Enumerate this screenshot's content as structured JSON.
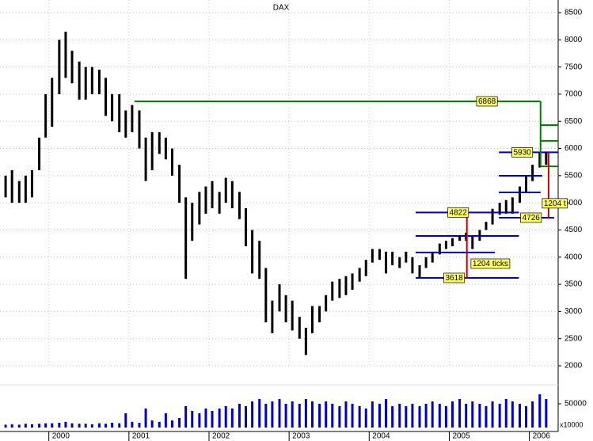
{
  "chart_data": {
    "type": "hilo",
    "title": "DAX",
    "x": [
      1999.46,
      1999.54,
      1999.63,
      1999.71,
      1999.79,
      1999.88,
      1999.96,
      2000.04,
      2000.13,
      2000.21,
      2000.29,
      2000.38,
      2000.46,
      2000.54,
      2000.63,
      2000.71,
      2000.79,
      2000.88,
      2000.96,
      2001.04,
      2001.13,
      2001.21,
      2001.29,
      2001.38,
      2001.46,
      2001.54,
      2001.63,
      2001.71,
      2001.79,
      2001.88,
      2001.96,
      2002.04,
      2002.13,
      2002.21,
      2002.29,
      2002.38,
      2002.46,
      2002.54,
      2002.63,
      2002.71,
      2002.79,
      2002.88,
      2002.96,
      2003.04,
      2003.13,
      2003.21,
      2003.29,
      2003.38,
      2003.46,
      2003.54,
      2003.63,
      2003.71,
      2003.79,
      2003.88,
      2003.96,
      2004.04,
      2004.13,
      2004.21,
      2004.29,
      2004.38,
      2004.46,
      2004.54,
      2004.63,
      2004.71,
      2004.79,
      2004.88,
      2004.96,
      2005.04,
      2005.13,
      2005.21,
      2005.29,
      2005.38,
      2005.46,
      2005.54,
      2005.63,
      2005.71,
      2005.79,
      2005.88,
      2005.96,
      2006.04,
      2006.13,
      2006.21
    ],
    "high": [
      5500,
      5600,
      5400,
      5500,
      5600,
      6200,
      7000,
      7300,
      8000,
      8150,
      7800,
      7600,
      7500,
      7500,
      7450,
      7300,
      7000,
      7000,
      6700,
      6800,
      6700,
      6200,
      6300,
      6300,
      6200,
      6000,
      5700,
      5100,
      5000,
      5200,
      5300,
      5400,
      5200,
      5460,
      5400,
      5200,
      4900,
      4500,
      4300,
      3800,
      3200,
      3500,
      3300,
      3200,
      2900,
      2700,
      3100,
      3100,
      3300,
      3550,
      3600,
      3650,
      3700,
      3800,
      3950,
      4150,
      4150,
      4100,
      4100,
      4000,
      4100,
      4000,
      3850,
      4000,
      4100,
      4250,
      4300,
      4350,
      4400,
      4450,
      4400,
      4500,
      4650,
      4890,
      5000,
      5050,
      5100,
      5300,
      5500,
      5700,
      5930,
      5930
    ],
    "low": [
      5100,
      5000,
      5000,
      5000,
      5100,
      5600,
      6200,
      6400,
      7000,
      7300,
      7200,
      6900,
      6900,
      7000,
      7000,
      6600,
      6500,
      6300,
      6200,
      6300,
      6000,
      5400,
      5600,
      5900,
      5800,
      5500,
      5000,
      3600,
      4300,
      4600,
      4800,
      4900,
      4800,
      5000,
      4900,
      4700,
      4200,
      3700,
      3600,
      2800,
      2600,
      3000,
      2800,
      2650,
      2500,
      2200,
      2600,
      2800,
      3000,
      3200,
      3250,
      3300,
      3400,
      3550,
      3650,
      3900,
      3950,
      3700,
      3850,
      3800,
      3900,
      3700,
      3620,
      3800,
      3900,
      4050,
      4150,
      4200,
      4300,
      4300,
      4150,
      4300,
      4500,
      4600,
      4780,
      4800,
      4800,
      5000,
      5200,
      5400,
      5650,
      5700
    ],
    "volume": [
      6000,
      7000,
      6000,
      8000,
      7000,
      8000,
      9000,
      9000,
      10000,
      12000,
      9000,
      8000,
      8000,
      7000,
      9000,
      8000,
      10000,
      9000,
      30000,
      12000,
      10000,
      40000,
      15000,
      12000,
      30000,
      15000,
      20000,
      45000,
      35000,
      30000,
      40000,
      35000,
      40000,
      45000,
      40000,
      50000,
      45000,
      55000,
      60000,
      50000,
      55000,
      60000,
      50000,
      55000,
      50000,
      60000,
      55000,
      50000,
      55000,
      50000,
      45000,
      55000,
      50000,
      45000,
      40000,
      55000,
      50000,
      60000,
      45000,
      50000,
      45000,
      50000,
      45000,
      50000,
      55000,
      50000,
      45000,
      55000,
      60000,
      50000,
      55000,
      50000,
      45000,
      55000,
      50000,
      60000,
      55000,
      50000,
      45000,
      55000,
      70000,
      60000
    ],
    "bar_color": "#000000",
    "volume_color": "#0000cc",
    "xlim": [
      1999.39,
      2006.36
    ],
    "xticks": [
      2000,
      2001,
      2002,
      2003,
      2004,
      2005,
      2006
    ],
    "ylim": [
      2000,
      8500
    ],
    "yticks": [
      2000,
      2500,
      3000,
      3500,
      4000,
      4500,
      5000,
      5500,
      6000,
      6500,
      7000,
      7500,
      8000,
      8500
    ],
    "volume_ylim": [
      0,
      80000
    ],
    "volume_yticks": [
      50000
    ],
    "volume_unit": "x10000",
    "grid": true,
    "levels": [
      {
        "value": 6868,
        "color": "#008000",
        "from": 2001.07,
        "to": 2006.14,
        "label_x": 2005.46
      },
      {
        "value": 6430,
        "color": "#008000",
        "from": 2006.14,
        "to": 2006.36
      },
      {
        "value": 6140,
        "color": "#008000",
        "from": 2006.14,
        "to": 2006.36
      },
      {
        "value": 5670,
        "color": "#008000",
        "from": 2006.14,
        "to": 2006.36
      },
      {
        "value": 5930,
        "color": "#0000cc",
        "from": 2005.62,
        "to": 2006.36,
        "label_x": 2005.9
      },
      {
        "value": 5498,
        "color": "#0000cc",
        "from": 2005.62,
        "to": 2006.16
      },
      {
        "value": 5192,
        "color": "#0000cc",
        "from": 2005.62,
        "to": 2006.14
      },
      {
        "value": 4726,
        "color": "#0000cc",
        "from": 2005.62,
        "to": 2006.31,
        "label_x": 2006.01
      },
      {
        "value": 4822,
        "color": "#0000cc",
        "from": 2004.58,
        "to": 2005.87,
        "label_x": 2005.1
      },
      {
        "value": 4390,
        "color": "#0000cc",
        "from": 2004.58,
        "to": 2005.87
      },
      {
        "value": 4085,
        "color": "#0000cc",
        "from": 2004.58,
        "to": 2005.57
      },
      {
        "value": 3618,
        "color": "#0000cc",
        "from": 2004.58,
        "to": 2005.87,
        "label_x": 2005.05
      }
    ],
    "verticals": [
      {
        "x": 2006.14,
        "from": 6868,
        "to": 5670,
        "color": "#008000"
      },
      {
        "x": 2005.22,
        "from": 4822,
        "to": 3618,
        "color": "#cc0000"
      },
      {
        "x": 2006.24,
        "from": 5930,
        "to": 4726,
        "color": "#cc0000"
      }
    ],
    "annotations": [
      {
        "text": "1204 ticks",
        "x": 2005.37,
        "y": 3880
      },
      {
        "text": "1204 t",
        "x": 2006.26,
        "y": 4990
      }
    ]
  }
}
